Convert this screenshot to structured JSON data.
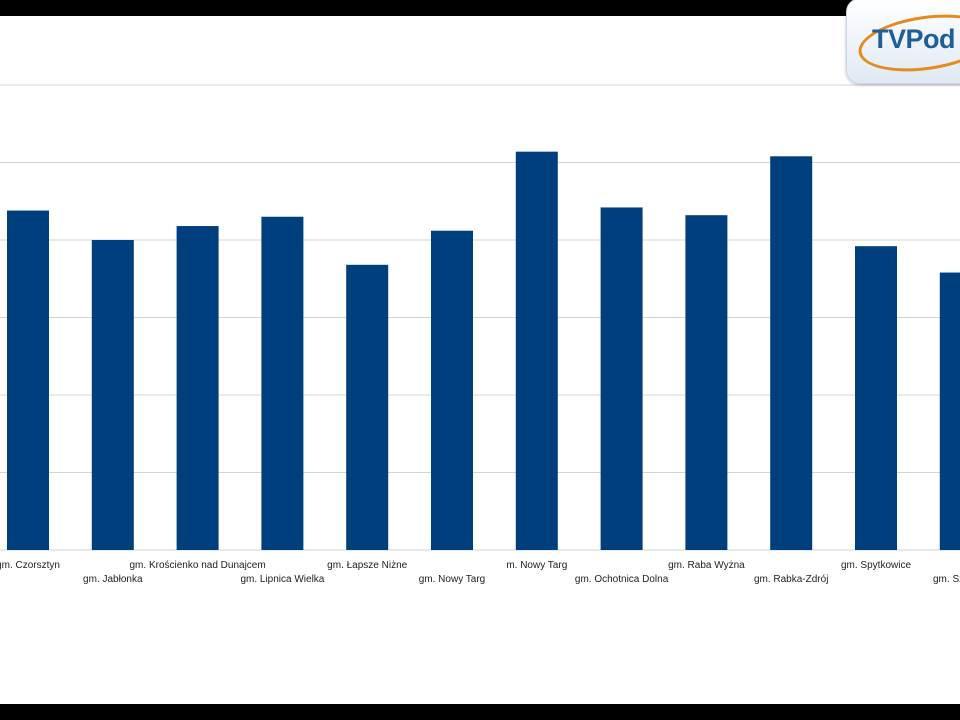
{
  "logo": {
    "text": "TVPod"
  },
  "colors": {
    "bar": "#003f7d",
    "grid": "#d4d4d4",
    "background": "#ffffff"
  },
  "chart_data": {
    "type": "bar",
    "title": "",
    "xlabel": "",
    "ylabel": "",
    "ylim": [
      0,
      600
    ],
    "grid": true,
    "legend": "none",
    "categories": [
      "gm. Czorsztyn",
      "gm. Jabłonka",
      "gm. Krościenko nad Dunajcem",
      "gm. Lipnica Wielka",
      "gm. Łapsze Niżne",
      "gm. Nowy Targ",
      "m. Nowy Targ",
      "gm. Ochotnica Dolna",
      "gm. Raba Wyżna",
      "gm. Rabka-Zdrój",
      "gm. Spytkowice",
      "gm. Szaflary"
    ],
    "values": [
      438,
      400,
      418,
      430,
      368,
      412,
      514,
      442,
      432,
      508,
      392,
      358
    ]
  }
}
